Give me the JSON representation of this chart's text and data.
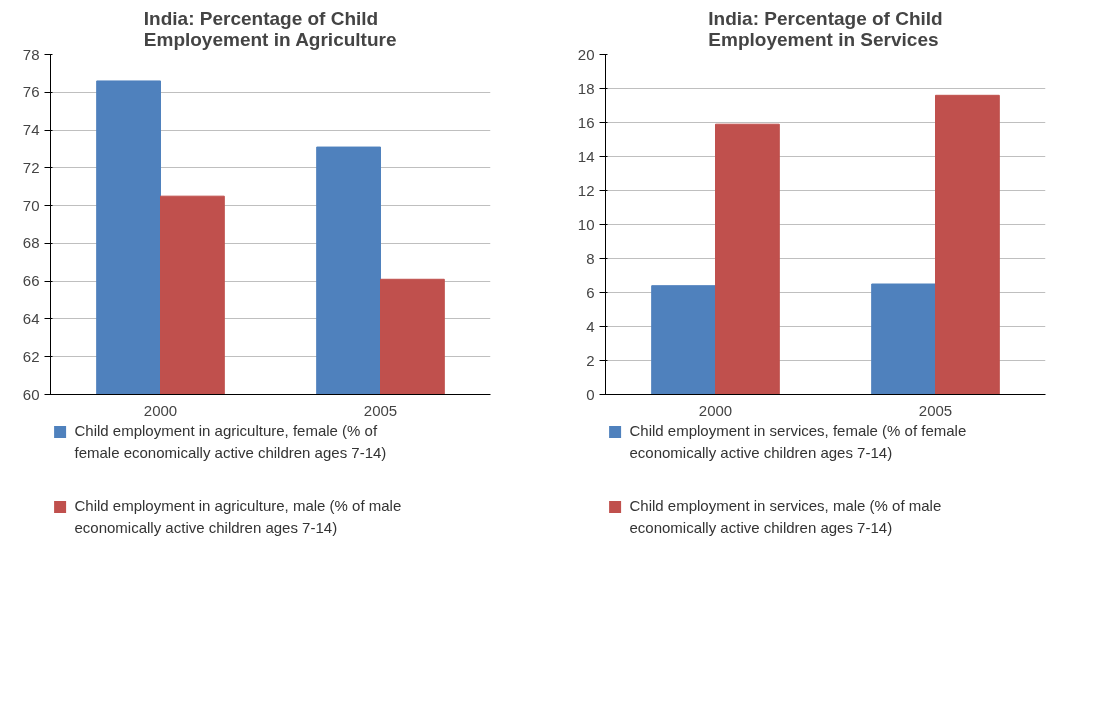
{
  "chart_data": [
    {
      "type": "bar",
      "title": "India: Percentage of Child Employement in Agriculture",
      "categories": [
        "2000",
        "2005"
      ],
      "series": [
        {
          "name": "Child employment in agriculture, female (% of female economically active children ages 7-14)",
          "color": "#4f81bd",
          "values": [
            76.6,
            73.1
          ]
        },
        {
          "name": "Child employment in agriculture, male (% of male economically active children ages 7-14)",
          "color": "#c0504d",
          "values": [
            70.5,
            66.1
          ]
        }
      ],
      "ylim": [
        60,
        78
      ],
      "yticks": [
        60,
        62,
        64,
        66,
        68,
        70,
        72,
        74,
        76,
        78
      ],
      "grid": "y",
      "legend": "bottom"
    },
    {
      "type": "bar",
      "title": "India: Percentage of Child Employement in Services",
      "categories": [
        "2000",
        "2005"
      ],
      "series": [
        {
          "name": "Child employment in services, female (% of female economically active children ages 7-14)",
          "color": "#4f81bd",
          "values": [
            6.4,
            6.5
          ]
        },
        {
          "name": "Child employment in services, male (% of male economically active children ages 7-14)",
          "color": "#c0504d",
          "values": [
            15.9,
            17.6
          ]
        }
      ],
      "ylim": [
        0,
        20
      ],
      "yticks": [
        0,
        2,
        4,
        6,
        8,
        10,
        12,
        14,
        16,
        18,
        20
      ],
      "grid": "y",
      "legend": "bottom"
    }
  ]
}
